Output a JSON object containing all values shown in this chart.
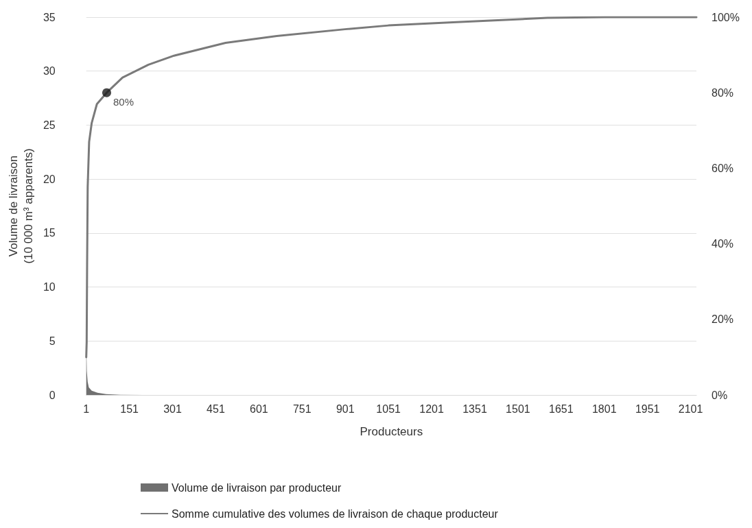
{
  "chart_data": {
    "type": "line",
    "xlabel": "Producteurs",
    "ylabel": "Volume de livraison\n(10 000 m³ apparents)",
    "xlim": [
      1,
      2121
    ],
    "xticks": [
      1,
      151,
      301,
      451,
      601,
      751,
      901,
      1051,
      1201,
      1351,
      1501,
      1651,
      1801,
      1951,
      2101
    ],
    "ylim": [
      0,
      35
    ],
    "yticks": [
      0,
      5,
      10,
      15,
      20,
      25,
      30,
      35
    ],
    "y2lim": [
      0,
      100
    ],
    "y2ticks": [
      {
        "value": 0,
        "label": "0%"
      },
      {
        "value": 20,
        "label": "20%"
      },
      {
        "value": 40,
        "label": "40%"
      },
      {
        "value": 60,
        "label": "60%"
      },
      {
        "value": 80,
        "label": "80%"
      },
      {
        "value": 100,
        "label": "100%"
      }
    ],
    "grid": "y",
    "legend": "bottom",
    "series": [
      {
        "type": "area",
        "name": "Volume de livraison par producteur",
        "color": "#707070",
        "x": [
          1,
          3,
          6,
          10,
          20,
          40,
          70,
          120,
          200,
          2121
        ],
        "values": [
          5,
          2.2,
          1.2,
          0.7,
          0.4,
          0.2,
          0.08,
          0.02,
          0,
          0
        ]
      },
      {
        "type": "line",
        "axis": "y2",
        "name": "Somme cumulative des volumes de livraison de chaque producteur",
        "color": "#7a7a7a",
        "x": [
          1,
          2.5,
          4,
          6,
          11,
          20,
          38,
          72,
          127,
          217,
          306,
          485,
          663,
          900,
          1051,
          1288,
          1603,
          1801,
          2121
        ],
        "values": [
          10,
          14,
          34.5,
          55,
          67,
          72,
          77,
          80,
          84,
          87.4,
          89.8,
          93.2,
          95,
          96.8,
          97.8,
          98.7,
          99.8,
          100,
          100
        ]
      },
      {
        "type": "scatter",
        "axis": "y2",
        "marker": "circle",
        "color": "#1a1a1a",
        "x": [
          72
        ],
        "values": [
          80
        ],
        "value_labels": [
          "80%"
        ]
      }
    ]
  }
}
